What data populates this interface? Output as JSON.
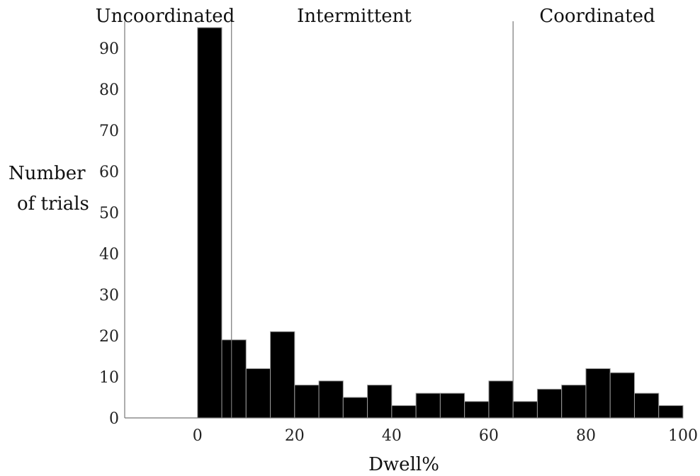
{
  "chart_data": {
    "type": "bar",
    "title": "",
    "xlabel": "Dwell%",
    "ylabel_lines": [
      "Number",
      "of trials"
    ],
    "xlim": [
      -15,
      100
    ],
    "ylim": [
      0,
      100
    ],
    "xticks": [
      0,
      20,
      40,
      60,
      80,
      100
    ],
    "yticks": [
      0,
      10,
      20,
      30,
      40,
      50,
      60,
      70,
      80,
      90
    ],
    "bin_width": 5,
    "bins": [
      {
        "start": 0,
        "value": 95
      },
      {
        "start": 5,
        "value": 19
      },
      {
        "start": 10,
        "value": 12
      },
      {
        "start": 15,
        "value": 21
      },
      {
        "start": 20,
        "value": 8
      },
      {
        "start": 25,
        "value": 9
      },
      {
        "start": 30,
        "value": 5
      },
      {
        "start": 35,
        "value": 8
      },
      {
        "start": 40,
        "value": 3
      },
      {
        "start": 45,
        "value": 6
      },
      {
        "start": 50,
        "value": 6
      },
      {
        "start": 55,
        "value": 4
      },
      {
        "start": 60,
        "value": 9
      },
      {
        "start": 65,
        "value": 4
      },
      {
        "start": 70,
        "value": 7
      },
      {
        "start": 75,
        "value": 8
      },
      {
        "start": 80,
        "value": 12
      },
      {
        "start": 85,
        "value": 11
      },
      {
        "start": 90,
        "value": 6
      },
      {
        "start": 95,
        "value": 3
      }
    ],
    "threshold_lines": [
      7,
      65
    ],
    "regions": [
      "Uncoordinated",
      "Intermittent",
      "Coordinated"
    ],
    "bar_color": "#000000",
    "bar_edge_color": "#9a9a9a",
    "axis_color": "#777777",
    "grid": false
  }
}
